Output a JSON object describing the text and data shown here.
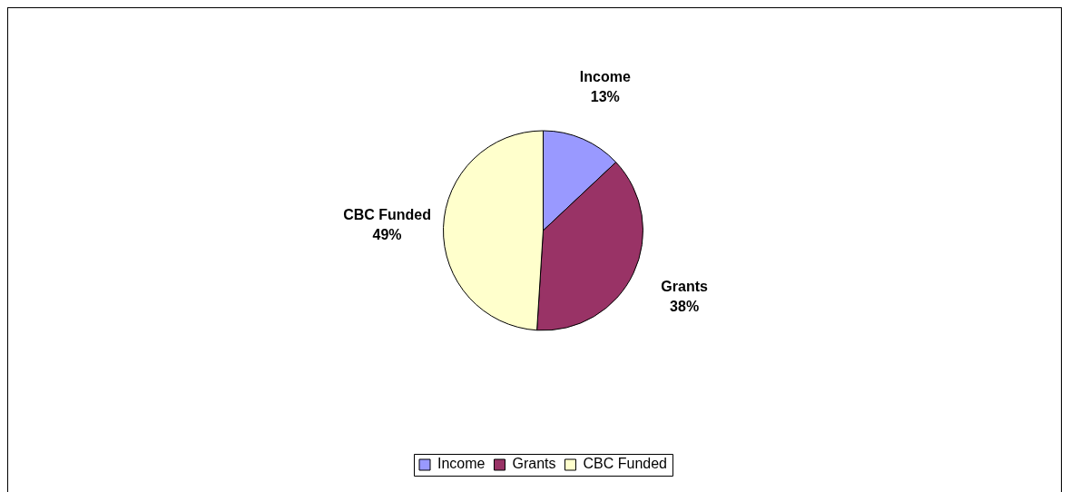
{
  "chart_data": {
    "type": "pie",
    "categories": [
      "Income",
      "Grants",
      "CBC Funded"
    ],
    "values": [
      13,
      38,
      49
    ],
    "colors": [
      "#9999ff",
      "#993366",
      "#ffffcc"
    ],
    "value_labels": [
      "13%",
      "38%",
      "49%"
    ],
    "legend": "bottom"
  }
}
